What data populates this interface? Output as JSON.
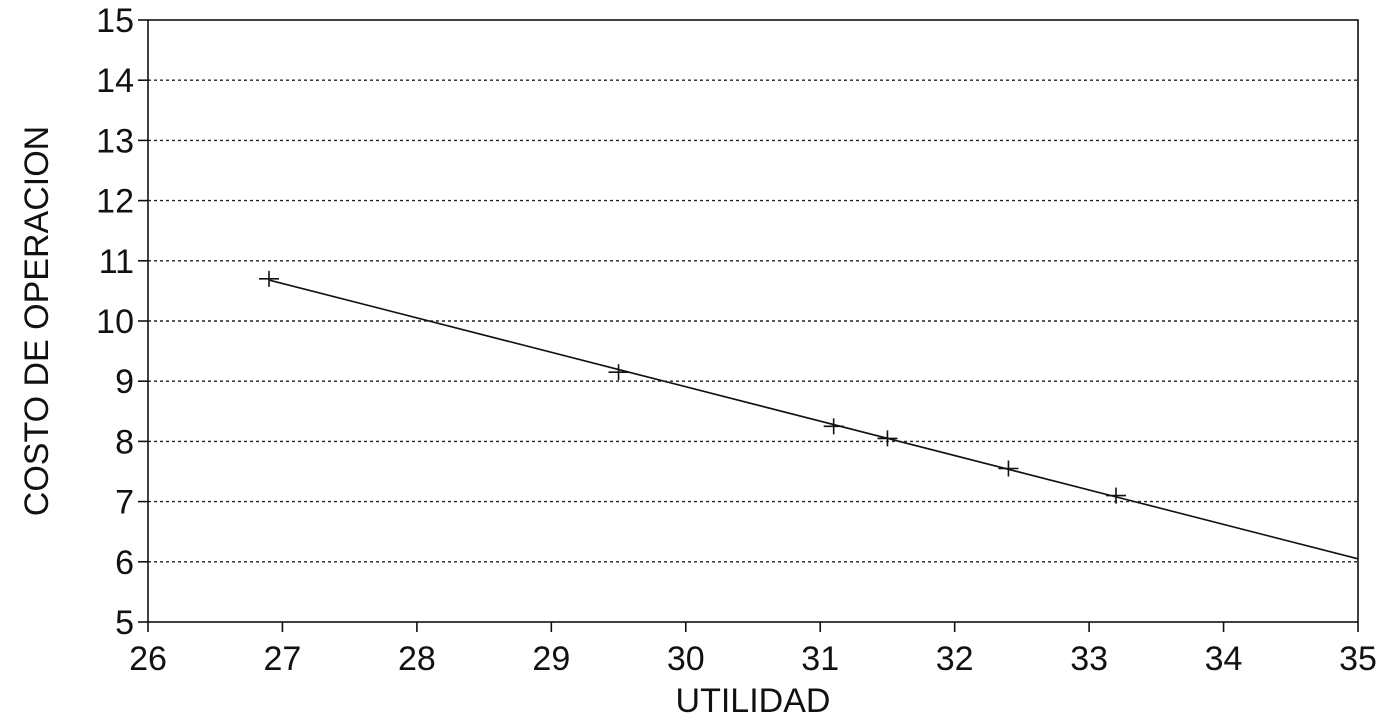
{
  "chart_data": {
    "type": "scatter",
    "title": "",
    "xlabel": "UTILIDAD",
    "ylabel": "COSTO DE OPERACION",
    "xlim": [
      26,
      35
    ],
    "ylim": [
      5,
      15
    ],
    "x_ticks": [
      "26",
      "27",
      "28",
      "29",
      "30",
      "31",
      "32",
      "33",
      "34",
      "35"
    ],
    "y_ticks": [
      "5",
      "6",
      "7",
      "8",
      "9",
      "10",
      "11",
      "12",
      "13",
      "14",
      "15"
    ],
    "grid": "horizontal-dotted",
    "legend": "none",
    "series": [
      {
        "marker": "cross",
        "points": [
          {
            "x": 26.9,
            "y": 10.7
          },
          {
            "x": 29.5,
            "y": 9.15
          },
          {
            "x": 31.1,
            "y": 8.25
          },
          {
            "x": 31.5,
            "y": 8.05
          },
          {
            "x": 32.4,
            "y": 7.55
          },
          {
            "x": 33.2,
            "y": 7.1
          }
        ]
      }
    ],
    "fit_line": {
      "x": [
        26.9,
        35.0
      ],
      "y": [
        10.68,
        6.05
      ]
    },
    "colors": {
      "ink": "#111111",
      "background": "#ffffff"
    }
  }
}
